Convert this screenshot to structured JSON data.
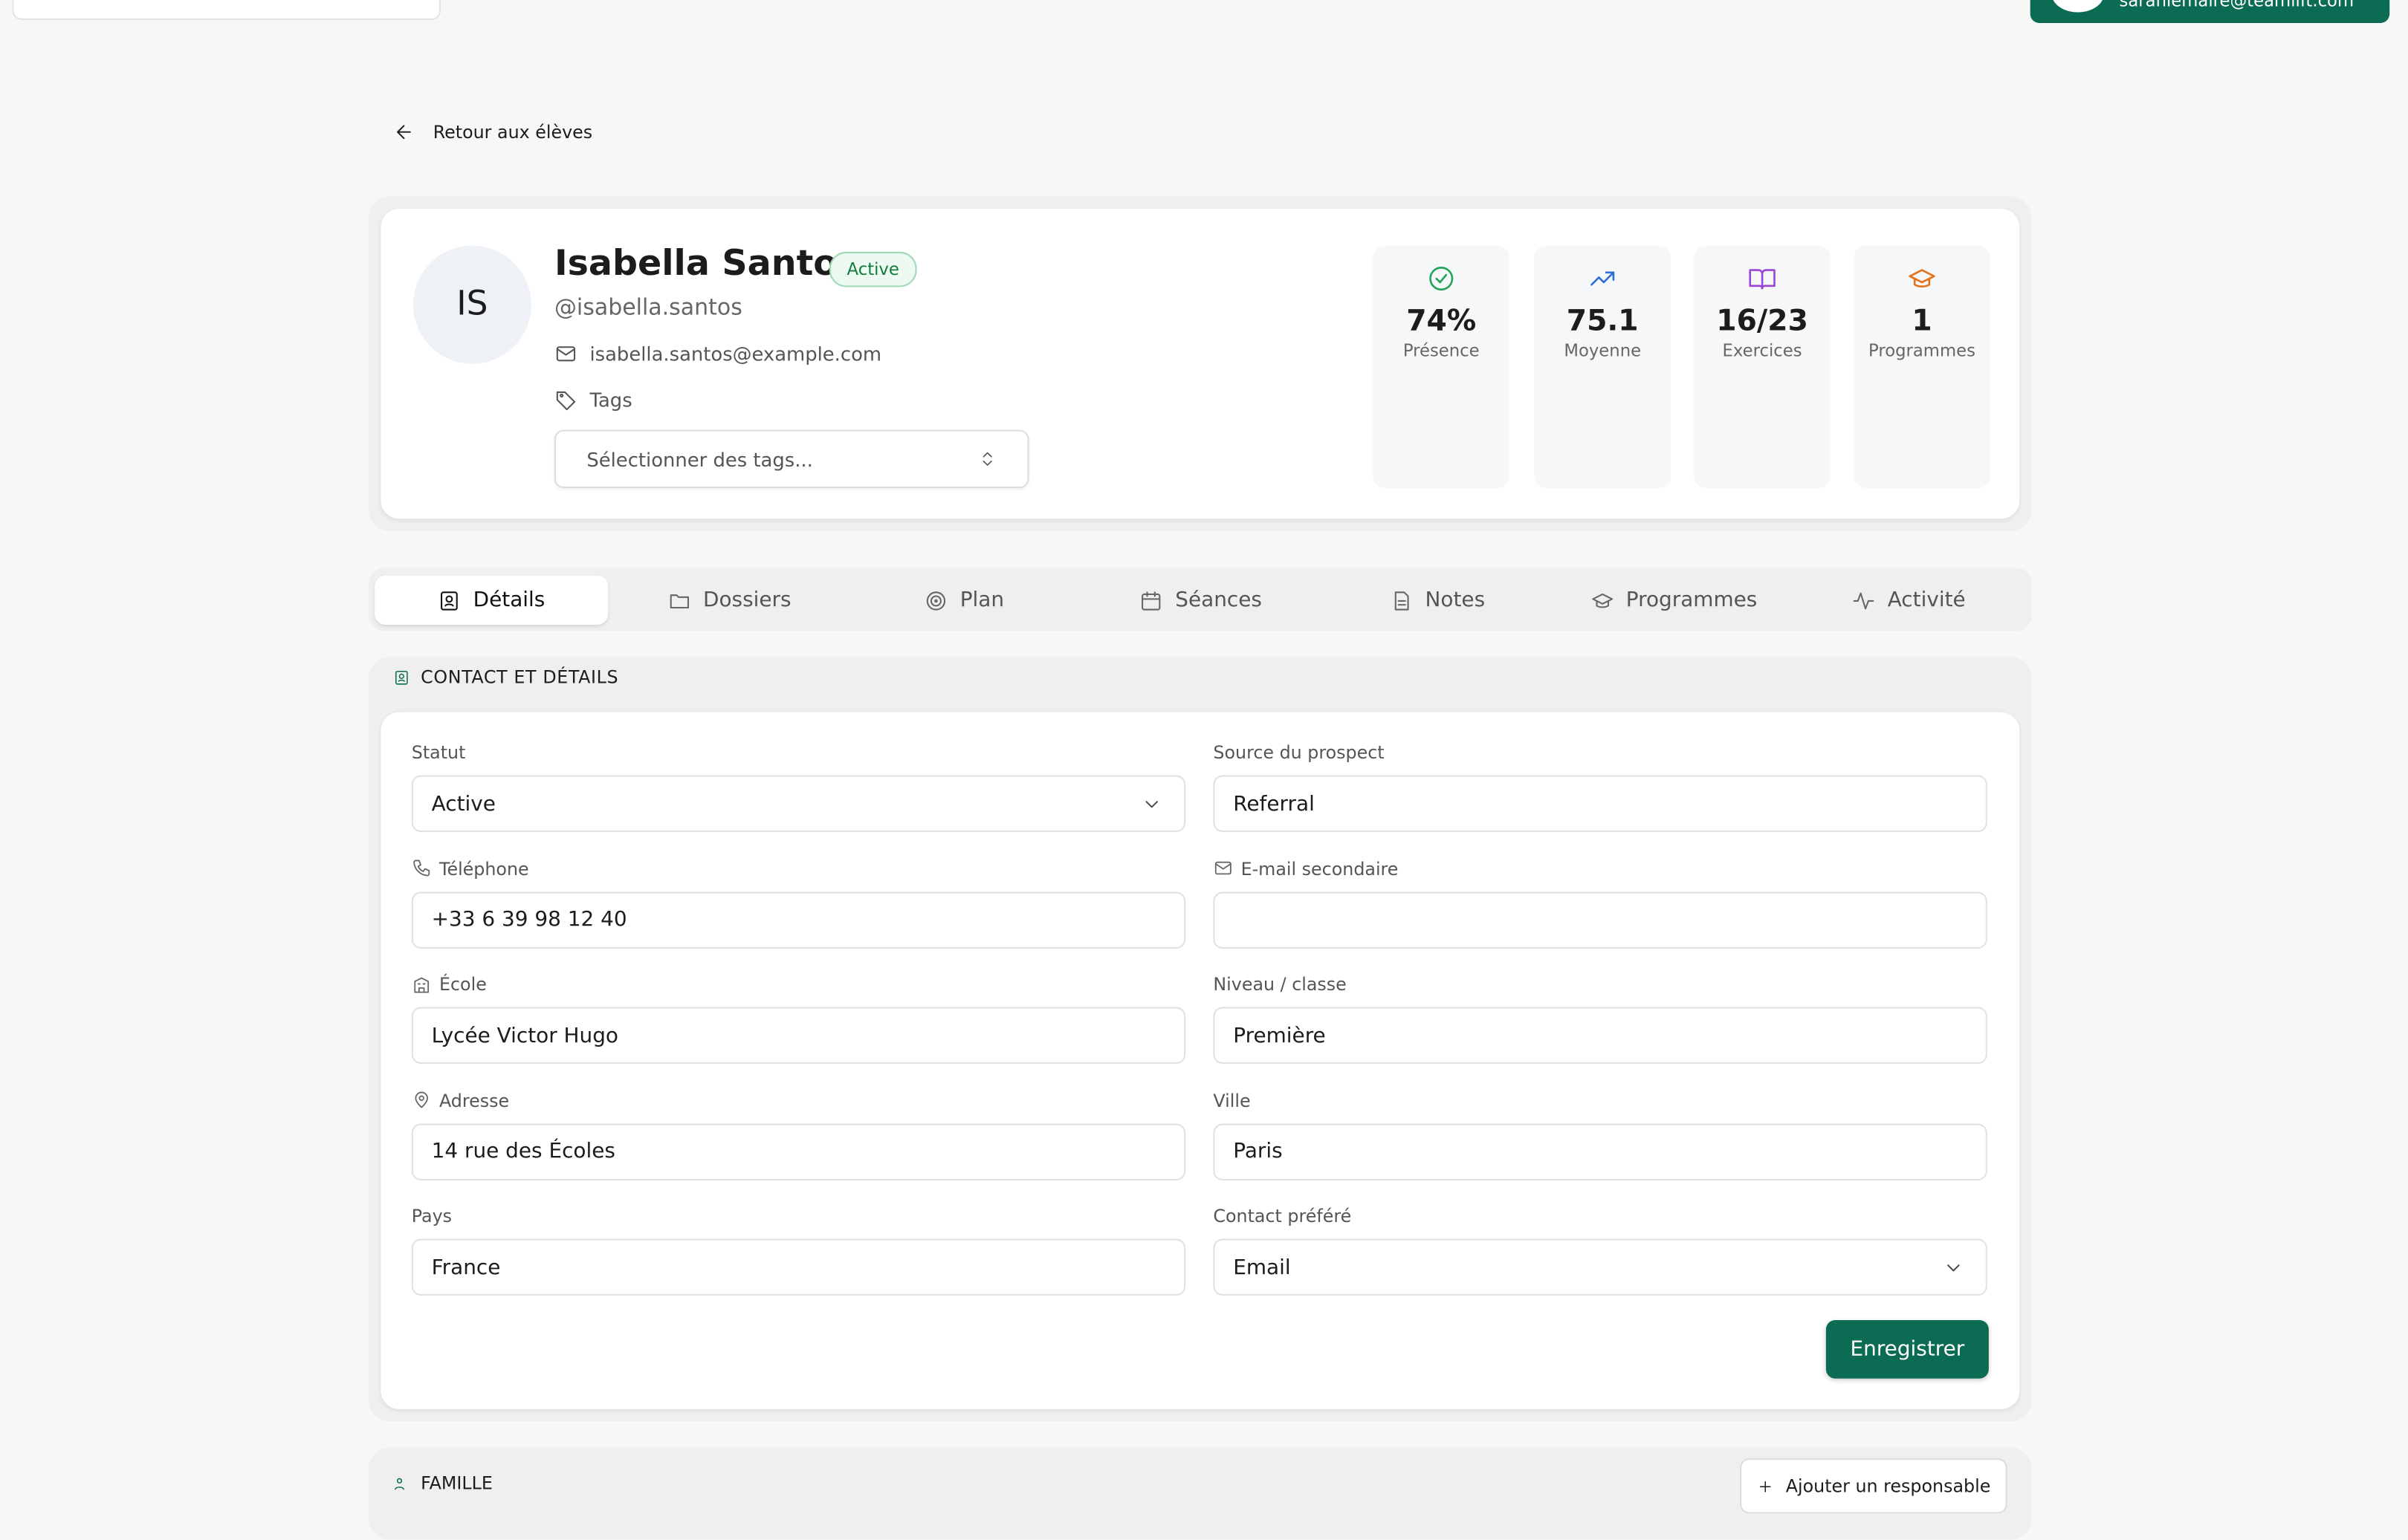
{
  "topbar": {
    "user_email": "sarahlemaire@teamlift.com"
  },
  "back_link": "Retour aux élèves",
  "profile": {
    "initials": "IS",
    "name": "Isabella Santos",
    "status_badge": "Active",
    "handle": "@isabella.santos",
    "email": "isabella.santos@example.com",
    "tags_label": "Tags",
    "tags_placeholder": "Sélectionner des tags..."
  },
  "stats": [
    {
      "value": "74%",
      "label": "Présence"
    },
    {
      "value": "75.1",
      "label": "Moyenne"
    },
    {
      "value": "16/23",
      "label": "Exercices"
    },
    {
      "value": "1",
      "label": "Programmes"
    }
  ],
  "tabs": [
    "Détails",
    "Dossiers",
    "Plan",
    "Séances",
    "Notes",
    "Programmes",
    "Activité"
  ],
  "contact_section": {
    "title": "CONTACT ET DÉTAILS",
    "fields": [
      {
        "label": "Statut",
        "value": "Active"
      },
      {
        "label": "Source du prospect",
        "value": "Referral"
      },
      {
        "label": "Téléphone",
        "value": "+33 6 39 98 12 40"
      },
      {
        "label": "E-mail secondaire",
        "value": null
      },
      {
        "label": "École",
        "value": "Lycée Victor Hugo"
      },
      {
        "label": "Niveau / classe",
        "value": "Première"
      },
      {
        "label": "Adresse",
        "value": "14 rue des Écoles"
      },
      {
        "label": "Ville",
        "value": "Paris"
      },
      {
        "label": "Pays",
        "value": "France"
      },
      {
        "label": "Contact préféré",
        "value": "Email"
      }
    ],
    "save_button": "Enregistrer"
  },
  "family_section": {
    "title": "FAMILLE",
    "add_button": "Ajouter un responsable"
  }
}
